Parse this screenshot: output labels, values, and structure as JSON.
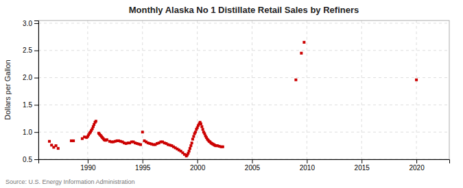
{
  "chart_data": {
    "type": "scatter",
    "title": "Monthly Alaska No 1 Distillate Retail Sales by Refiners",
    "y_label": "Dollars per Gallon",
    "source": "Source: U.S. Energy Information Administration",
    "color": "#cc0000",
    "marker": "square",
    "grid": true,
    "xlim": [
      1985.5,
      2023
    ],
    "ylim": [
      0.5,
      3.05
    ],
    "xticks": [
      1990,
      1995,
      2000,
      2005,
      2010,
      2015,
      2020
    ],
    "yticks": [
      0.5,
      {
        "value": 1.0,
        "label": "1.0"
      },
      1.5,
      {
        "value": 2.0,
        "label": "2.0"
      },
      2.5,
      {
        "value": 3.0,
        "label": "3.0"
      }
    ],
    "x": [
      1986.5,
      1986.7,
      1986.9,
      1987.1,
      1987.3,
      1988.5,
      1988.7,
      1989.5,
      1989.7,
      1989.9,
      1990.0,
      1990.08,
      1990.17,
      1990.25,
      1990.33,
      1990.42,
      1990.5,
      1990.58,
      1990.67,
      1990.75,
      1991.0,
      1991.08,
      1991.17,
      1991.25,
      1991.33,
      1991.42,
      1991.5,
      1991.58,
      1991.67,
      1991.75,
      1992.0,
      1992.17,
      1992.33,
      1992.5,
      1992.67,
      1992.83,
      1993.0,
      1993.17,
      1993.33,
      1993.5,
      1993.67,
      1993.83,
      1994.0,
      1994.17,
      1994.33,
      1994.5,
      1994.67,
      1994.83,
      1995.0,
      1995.17,
      1995.33,
      1995.5,
      1995.67,
      1995.83,
      1996.0,
      1996.17,
      1996.33,
      1996.5,
      1996.67,
      1996.83,
      1997.0,
      1997.17,
      1997.33,
      1997.5,
      1997.67,
      1997.83,
      1998.0,
      1998.17,
      1998.33,
      1998.5,
      1998.67,
      1998.83,
      1999.0,
      1999.08,
      1999.17,
      1999.25,
      1999.33,
      1999.42,
      1999.5,
      1999.58,
      1999.67,
      1999.75,
      1999.83,
      1999.92,
      2000.0,
      2000.08,
      2000.17,
      2000.25,
      2000.33,
      2000.42,
      2000.5,
      2000.58,
      2000.67,
      2000.75,
      2000.83,
      2000.92,
      2001.0,
      2001.08,
      2001.17,
      2001.25,
      2001.33,
      2001.42,
      2001.5,
      2001.58,
      2001.67,
      2001.75,
      2001.83,
      2002.0,
      2002.17,
      2002.33,
      2009.0,
      2009.5,
      2009.75,
      2020.0
    ],
    "values": [
      0.83,
      0.76,
      0.72,
      0.75,
      0.7,
      0.84,
      0.84,
      0.88,
      0.91,
      0.9,
      0.92,
      0.95,
      0.98,
      1.0,
      1.03,
      1.06,
      1.1,
      1.14,
      1.18,
      1.2,
      0.98,
      0.96,
      0.94,
      0.92,
      0.9,
      0.88,
      0.86,
      0.85,
      0.85,
      0.86,
      0.83,
      0.82,
      0.82,
      0.83,
      0.84,
      0.84,
      0.83,
      0.82,
      0.8,
      0.79,
      0.8,
      0.8,
      0.82,
      0.82,
      0.8,
      0.79,
      0.78,
      0.77,
      1.0,
      0.84,
      0.82,
      0.8,
      0.79,
      0.78,
      0.77,
      0.77,
      0.79,
      0.8,
      0.82,
      0.82,
      0.8,
      0.79,
      0.77,
      0.76,
      0.75,
      0.73,
      0.71,
      0.69,
      0.67,
      0.65,
      0.62,
      0.59,
      0.56,
      0.58,
      0.61,
      0.65,
      0.7,
      0.75,
      0.8,
      0.87,
      0.92,
      0.97,
      1.0,
      1.05,
      1.08,
      1.12,
      1.15,
      1.18,
      1.15,
      1.1,
      1.05,
      1.0,
      0.97,
      0.93,
      0.9,
      0.87,
      0.85,
      0.83,
      0.82,
      0.8,
      0.79,
      0.78,
      0.77,
      0.76,
      0.75,
      0.75,
      0.75,
      0.74,
      0.73,
      0.73,
      1.96,
      2.45,
      2.65,
      1.96
    ]
  }
}
